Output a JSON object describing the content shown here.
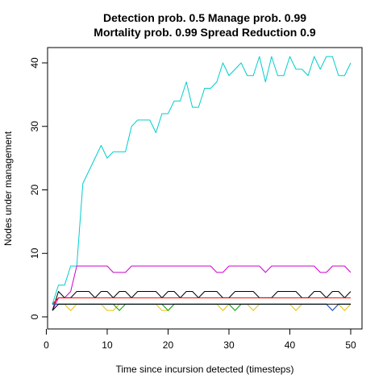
{
  "chart_data": {
    "type": "line",
    "title_line1": "Detection prob. 0.5 Manage prob. 0.99",
    "title_line2": "Mortality prob. 0.99 Spread Reduction 0.9",
    "xlabel": "Time since incursion detected (timesteps)",
    "ylabel": "Nodes under management",
    "xlim": [
      1,
      50
    ],
    "ylim": [
      0,
      41
    ],
    "xticks": [
      0,
      10,
      20,
      30,
      40,
      50
    ],
    "yticks": [
      0,
      10,
      20,
      30,
      40
    ],
    "grid": false,
    "series": [
      {
        "color": "#00CDCD",
        "x": [
          1,
          2,
          3,
          4,
          5,
          6,
          7,
          8,
          9,
          10,
          11,
          12,
          13,
          14,
          15,
          16,
          17,
          18,
          19,
          20,
          21,
          22,
          23,
          24,
          25,
          26,
          27,
          28,
          29,
          30,
          31,
          32,
          33,
          34,
          35,
          36,
          37,
          38,
          39,
          40,
          41,
          42,
          43,
          44,
          45,
          46,
          47,
          48,
          49,
          50
        ],
        "y": [
          2,
          5,
          5,
          8,
          8,
          21,
          23,
          25,
          27,
          25,
          26,
          26,
          26,
          30,
          31,
          31,
          31,
          29,
          32,
          32,
          34,
          34,
          37,
          33,
          33,
          36,
          36,
          37,
          40,
          38,
          39,
          40,
          38,
          38,
          41,
          37,
          41,
          38,
          38,
          41,
          39,
          39,
          38,
          41,
          39,
          41,
          41,
          38,
          38,
          40
        ]
      },
      {
        "color": "#CD00CD",
        "x": [
          1,
          2,
          3,
          4,
          5,
          6,
          7,
          8,
          9,
          10,
          11,
          12,
          13,
          14,
          15,
          16,
          17,
          18,
          19,
          20,
          21,
          22,
          23,
          24,
          25,
          26,
          27,
          28,
          29,
          30,
          31,
          32,
          33,
          34,
          35,
          36,
          37,
          38,
          39,
          40,
          41,
          42,
          43,
          44,
          45,
          46,
          47,
          48,
          49,
          50
        ],
        "y": [
          1,
          3,
          3,
          4,
          8,
          8,
          8,
          8,
          8,
          8,
          7,
          7,
          7,
          8,
          8,
          8,
          8,
          8,
          8,
          8,
          8,
          8,
          8,
          8,
          8,
          8,
          8,
          7,
          7,
          8,
          8,
          8,
          8,
          8,
          8,
          7,
          8,
          8,
          8,
          8,
          8,
          8,
          8,
          8,
          7,
          7,
          8,
          8,
          8,
          7
        ]
      },
      {
        "color": "#000000",
        "x": [
          1,
          2,
          3,
          4,
          5,
          6,
          7,
          8,
          9,
          10,
          11,
          12,
          13,
          14,
          15,
          16,
          17,
          18,
          19,
          20,
          21,
          22,
          23,
          24,
          25,
          26,
          27,
          28,
          29,
          30,
          31,
          32,
          33,
          34,
          35,
          36,
          37,
          38,
          39,
          40,
          41,
          42,
          43,
          44,
          45,
          46,
          47,
          48,
          49,
          50
        ],
        "y": [
          1,
          4,
          3,
          3,
          4,
          4,
          4,
          3,
          4,
          4,
          3,
          4,
          4,
          3,
          4,
          4,
          4,
          4,
          3,
          4,
          4,
          3,
          4,
          4,
          3,
          4,
          4,
          4,
          3,
          3,
          4,
          4,
          4,
          4,
          3,
          3,
          3,
          4,
          4,
          4,
          4,
          3,
          3,
          4,
          4,
          3,
          4,
          4,
          3,
          4
        ]
      },
      {
        "color": "#FF0000",
        "x": [
          1,
          2,
          3,
          4,
          5,
          6,
          7,
          8,
          9,
          10,
          11,
          12,
          13,
          14,
          15,
          16,
          17,
          18,
          19,
          20,
          21,
          22,
          23,
          24,
          25,
          26,
          27,
          28,
          29,
          30,
          31,
          32,
          33,
          34,
          35,
          36,
          37,
          38,
          39,
          40,
          41,
          42,
          43,
          44,
          45,
          46,
          47,
          48,
          49,
          50
        ],
        "y": [
          2,
          3,
          3,
          3,
          3,
          3,
          3,
          3,
          3,
          3,
          3,
          3,
          3,
          3,
          3,
          3,
          3,
          3,
          3,
          3,
          3,
          3,
          3,
          3,
          3,
          3,
          3,
          3,
          3,
          3,
          3,
          3,
          3,
          3,
          3,
          3,
          3,
          3,
          3,
          3,
          3,
          3,
          3,
          3,
          3,
          3,
          3,
          3,
          3,
          3
        ]
      },
      {
        "color": "#E6C000",
        "x": [
          1,
          2,
          3,
          4,
          5,
          6,
          7,
          8,
          9,
          10,
          11,
          12,
          13,
          14,
          15,
          16,
          17,
          18,
          19,
          20,
          21,
          22,
          23,
          24,
          25,
          26,
          27,
          28,
          29,
          30,
          31,
          32,
          33,
          34,
          35,
          36,
          37,
          38,
          39,
          40,
          41,
          42,
          43,
          44,
          45,
          46,
          47,
          48,
          49,
          50
        ],
        "y": [
          2,
          2,
          2,
          1,
          2,
          2,
          2,
          2,
          2,
          1,
          1,
          2,
          2,
          2,
          2,
          2,
          2,
          2,
          1,
          1,
          2,
          2,
          2,
          2,
          2,
          2,
          2,
          2,
          1,
          2,
          2,
          2,
          2,
          1,
          2,
          2,
          2,
          2,
          2,
          2,
          1,
          2,
          2,
          2,
          2,
          2,
          1,
          2,
          1,
          2
        ]
      },
      {
        "color": "#00A000",
        "x": [
          1,
          2,
          3,
          4,
          5,
          6,
          7,
          8,
          9,
          10,
          11,
          12,
          13,
          14,
          15,
          16,
          17,
          18,
          19,
          20,
          21,
          22,
          23,
          24,
          25,
          26,
          27,
          28,
          29,
          30,
          31,
          32,
          33,
          34,
          35,
          36,
          37,
          38,
          39,
          40,
          41,
          42,
          43,
          44,
          45,
          46,
          47,
          48,
          49,
          50
        ],
        "y": [
          2,
          2,
          2,
          2,
          2,
          2,
          2,
          2,
          2,
          2,
          2,
          1,
          2,
          2,
          2,
          2,
          2,
          2,
          2,
          1,
          2,
          2,
          2,
          2,
          2,
          2,
          2,
          2,
          2,
          2,
          1,
          2,
          2,
          2,
          2,
          2,
          2,
          2,
          2,
          2,
          2,
          2,
          2,
          2,
          2,
          2,
          1,
          2,
          2,
          2
        ]
      },
      {
        "color": "#3050E0",
        "x": [
          1,
          2,
          3,
          4,
          5,
          6,
          7,
          8,
          9,
          10,
          11,
          12,
          13,
          14,
          15,
          16,
          17,
          18,
          19,
          20,
          21,
          22,
          23,
          24,
          25,
          26,
          27,
          28,
          29,
          30,
          31,
          32,
          33,
          34,
          35,
          36,
          37,
          38,
          39,
          40,
          41,
          42,
          43,
          44,
          45,
          46,
          47,
          48,
          49,
          50
        ],
        "y": [
          2,
          2,
          2,
          2,
          2,
          2,
          2,
          2,
          2,
          2,
          2,
          2,
          2,
          2,
          2,
          2,
          2,
          2,
          2,
          2,
          2,
          2,
          2,
          2,
          2,
          2,
          2,
          2,
          2,
          2,
          2,
          2,
          2,
          2,
          2,
          2,
          2,
          2,
          2,
          2,
          2,
          2,
          2,
          2,
          2,
          2,
          1,
          2,
          2,
          2
        ]
      },
      {
        "color": "#000000",
        "x": [
          1,
          2,
          3,
          4,
          5,
          6,
          7,
          8,
          9,
          10,
          11,
          12,
          13,
          14,
          15,
          16,
          17,
          18,
          19,
          20,
          21,
          22,
          23,
          24,
          25,
          26,
          27,
          28,
          29,
          30,
          31,
          32,
          33,
          34,
          35,
          36,
          37,
          38,
          39,
          40,
          41,
          42,
          43,
          44,
          45,
          46,
          47,
          48,
          49,
          50
        ],
        "y": [
          1,
          2,
          2,
          2,
          2,
          2,
          2,
          2,
          2,
          2,
          2,
          2,
          2,
          2,
          2,
          2,
          2,
          2,
          2,
          2,
          2,
          2,
          2,
          2,
          2,
          2,
          2,
          2,
          2,
          2,
          2,
          2,
          2,
          2,
          2,
          2,
          2,
          2,
          2,
          2,
          2,
          2,
          2,
          2,
          2,
          2,
          2,
          2,
          2,
          2
        ]
      }
    ]
  }
}
